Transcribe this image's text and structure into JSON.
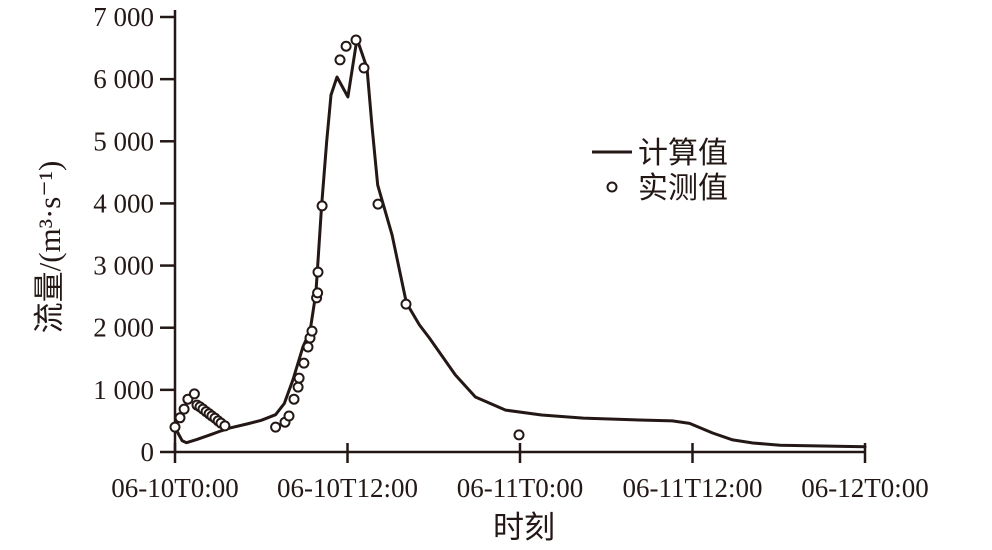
{
  "figure": {
    "background": "#ffffff",
    "ink_color": "#231815",
    "marker_fill": "#ffffff"
  },
  "chart_data": {
    "type": "line",
    "title": "",
    "xlabel": "时刻",
    "ylabel": "流量/(m³·s⁻¹)",
    "x_unit": "hours since 06-10T0:00",
    "xlim_hours": [
      0,
      48
    ],
    "ylim": [
      0,
      7000
    ],
    "grid": false,
    "legend_position": "inside upper-right",
    "x_ticks": [
      {
        "hour": 0,
        "label": "06-10T0:00"
      },
      {
        "hour": 12,
        "label": "06-10T12:00"
      },
      {
        "hour": 24,
        "label": "06-11T0:00"
      },
      {
        "hour": 36,
        "label": "06-11T12:00"
      },
      {
        "hour": 48,
        "label": "06-12T0:00"
      }
    ],
    "y_ticks": [
      {
        "value": 0,
        "label": "0"
      },
      {
        "value": 1000,
        "label": "1 000"
      },
      {
        "value": 2000,
        "label": "2 000"
      },
      {
        "value": 3000,
        "label": "3 000"
      },
      {
        "value": 4000,
        "label": "4 000"
      },
      {
        "value": 5000,
        "label": "5 000"
      },
      {
        "value": 6000,
        "label": "6 000"
      },
      {
        "value": 7000,
        "label": "7 000"
      }
    ],
    "series": [
      {
        "name": "计算值",
        "type": "line",
        "points": [
          [
            0,
            395
          ],
          [
            0.5,
            180
          ],
          [
            0.8,
            150
          ],
          [
            1.5,
            200
          ],
          [
            2.5,
            280
          ],
          [
            3.2,
            340
          ],
          [
            3.8,
            385
          ],
          [
            5.0,
            450
          ],
          [
            6.0,
            510
          ],
          [
            7.0,
            600
          ],
          [
            7.6,
            780
          ],
          [
            8.2,
            1160
          ],
          [
            8.9,
            1690
          ],
          [
            9.4,
            1950
          ],
          [
            9.8,
            2560
          ],
          [
            10.2,
            3960
          ],
          [
            10.55,
            5000
          ],
          [
            10.85,
            5745
          ],
          [
            11.27,
            6035
          ],
          [
            12.03,
            5715
          ],
          [
            12.66,
            6650
          ],
          [
            13.36,
            6180
          ],
          [
            13.7,
            5260
          ],
          [
            14.1,
            4295
          ],
          [
            15.1,
            3490
          ],
          [
            16.1,
            2400
          ],
          [
            17.0,
            2045
          ],
          [
            17.7,
            1835
          ],
          [
            19.5,
            1240
          ],
          [
            20.9,
            885
          ],
          [
            23.0,
            675
          ],
          [
            25.5,
            595
          ],
          [
            28.4,
            545
          ],
          [
            32.3,
            515
          ],
          [
            34.6,
            500
          ],
          [
            35.8,
            460
          ],
          [
            37.4,
            305
          ],
          [
            38.8,
            195
          ],
          [
            40.2,
            145
          ],
          [
            42.1,
            110
          ],
          [
            48,
            85
          ]
        ]
      },
      {
        "name": "实测值",
        "type": "scatter",
        "points": [
          [
            0,
            400
          ],
          [
            0.35,
            550
          ],
          [
            0.63,
            690
          ],
          [
            0.9,
            850
          ],
          [
            1.35,
            935
          ],
          [
            1.53,
            755
          ],
          [
            1.74,
            725
          ],
          [
            1.95,
            690
          ],
          [
            2.16,
            650
          ],
          [
            2.37,
            615
          ],
          [
            2.57,
            580
          ],
          [
            2.78,
            545
          ],
          [
            3.0,
            500
          ],
          [
            3.2,
            465
          ],
          [
            3.47,
            420
          ],
          [
            7.0,
            400
          ],
          [
            7.65,
            480
          ],
          [
            7.93,
            580
          ],
          [
            8.28,
            850
          ],
          [
            8.56,
            1045
          ],
          [
            8.63,
            1190
          ],
          [
            8.97,
            1430
          ],
          [
            9.25,
            1690
          ],
          [
            9.39,
            1835
          ],
          [
            9.53,
            1945
          ],
          [
            9.85,
            2480
          ],
          [
            9.92,
            2560
          ],
          [
            9.95,
            2895
          ],
          [
            10.23,
            3960
          ],
          [
            11.48,
            6310
          ],
          [
            11.9,
            6530
          ],
          [
            12.59,
            6630
          ],
          [
            13.15,
            6180
          ],
          [
            14.12,
            3990
          ],
          [
            16.07,
            2380
          ],
          [
            23.93,
            275
          ]
        ]
      }
    ]
  }
}
